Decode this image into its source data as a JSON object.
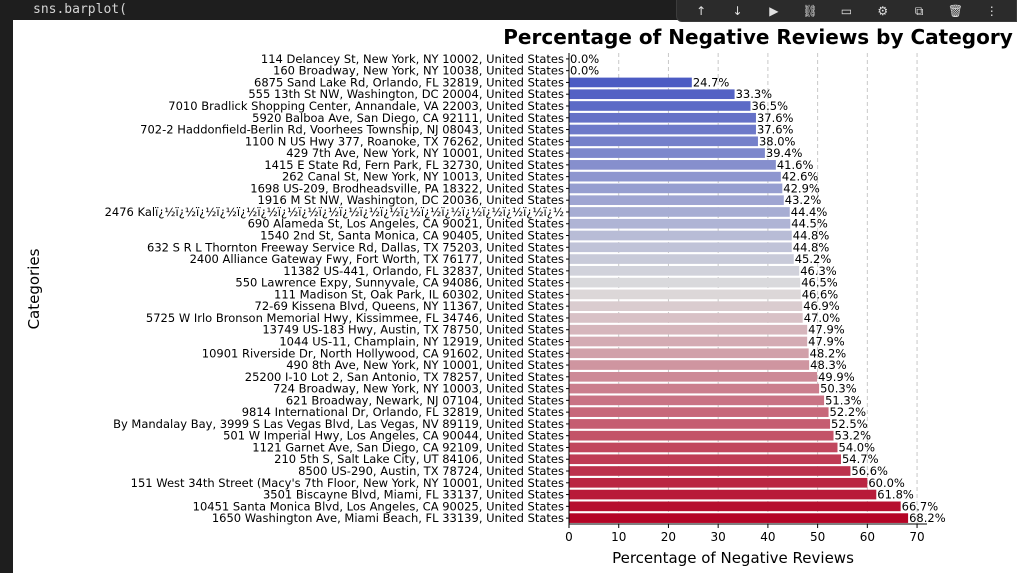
{
  "editor": {
    "code_line": "sns.barplot("
  },
  "toolbar": {
    "buttons": [
      {
        "name": "move-up-icon",
        "glyph": "↑"
      },
      {
        "name": "move-down-icon",
        "glyph": "↓"
      },
      {
        "name": "run-icon",
        "glyph": "▶"
      },
      {
        "name": "link-icon",
        "glyph": "⛓"
      },
      {
        "name": "comment-icon",
        "glyph": "▭"
      },
      {
        "name": "gear-icon",
        "glyph": "⚙"
      },
      {
        "name": "copy-icon",
        "glyph": "⧉"
      },
      {
        "name": "delete-icon",
        "glyph": "🗑"
      },
      {
        "name": "more-icon",
        "glyph": "⋮"
      }
    ]
  },
  "chart_data": {
    "type": "bar",
    "orientation": "horizontal",
    "title": "Percentage of Negative Reviews by Category",
    "xlabel": "Percentage of Negative Reviews",
    "ylabel": "Categories",
    "xlim": [
      0,
      72
    ],
    "xticks": [
      0,
      10,
      20,
      30,
      40,
      50,
      60,
      70
    ],
    "grid": "x-dashed",
    "palette": "coolwarm",
    "categories": [
      "114 Delancey St, New York, NY 10002, United States",
      "160 Broadway, New York, NY 10038, United States",
      "6875 Sand Lake Rd, Orlando, FL 32819, United States",
      "555 13th St NW, Washington, DC 20004, United States",
      "7010 Bradlick Shopping Center, Annandale, VA 22003, United States",
      "5920 Balboa Ave, San Diego, CA 92111, United States",
      "702-2 Haddonfield-Berlin Rd, Voorhees Township, NJ 08043, United States",
      "1100 N US Hwy 377, Roanoke, TX 76262, United States",
      "429 7th Ave, New York, NY 10001, United States",
      "1415 E State Rd, Fern Park, FL 32730, United States",
      "262 Canal St, New York, NY 10013, United States",
      "1698 US-209, Brodheadsville, PA 18322, United States",
      "1916 M St NW, Washington, DC 20036, United States",
      "2476 Kalï¿½ï¿½ï¿½ï¿½ï¿½ï¿½ï¿½ï¿½ï¿½ï¿½ï¿½ï¿½ï¿½ï¿½ï¿½ï¿½ï¿½ï¿½ï¿½ï¿½",
      "690 Alameda St, Los Angeles, CA 90021, United States",
      "1540 2nd St, Santa Monica, CA 90405, United States",
      "632 S R L Thornton Freeway Service Rd, Dallas, TX 75203, United States",
      "2400 Alliance Gateway Fwy, Fort Worth, TX 76177, United States",
      "11382 US-441, Orlando, FL 32837, United States",
      "550 Lawrence Expy, Sunnyvale, CA 94086, United States",
      "111 Madison St, Oak Park, IL 60302, United States",
      "72-69 Kissena Blvd, Queens, NY 11367, United States",
      "5725 W Irlo Bronson Memorial Hwy, Kissimmee, FL 34746, United States",
      "13749 US-183 Hwy, Austin, TX 78750, United States",
      "1044 US-11, Champlain, NY 12919, United States",
      "10901 Riverside Dr, North Hollywood, CA 91602, United States",
      "490 8th Ave, New York, NY 10001, United States",
      "25200 I-10 Lot 2, San Antonio, TX 78257, United States",
      "724 Broadway, New York, NY 10003, United States",
      "621 Broadway, Newark, NJ 07104, United States",
      "9814 International Dr, Orlando, FL 32819, United States",
      "By Mandalay Bay, 3999 S Las Vegas Blvd, Las Vegas, NV 89119, United States",
      "501 W Imperial Hwy, Los Angeles, CA 90044, United States",
      "1121 Garnet Ave, San Diego, CA 92109, United States",
      "210 5th S, Salt Lake City, UT 84106, United States",
      "8500 US-290, Austin, TX 78724, United States",
      "151 West 34th Street (Macy's 7th Floor, New York, NY 10001, United States",
      "3501 Biscayne Blvd, Miami, FL 33137, United States",
      "10451 Santa Monica Blvd, Los Angeles, CA 90025, United States",
      "1650 Washington Ave, Miami Beach, FL 33139, United States"
    ],
    "values": [
      0.0,
      0.0,
      24.7,
      33.3,
      36.5,
      37.6,
      37.6,
      38.0,
      39.4,
      41.6,
      42.6,
      42.9,
      43.2,
      44.4,
      44.5,
      44.8,
      44.8,
      45.2,
      46.3,
      46.5,
      46.6,
      46.9,
      47.0,
      47.9,
      47.9,
      48.2,
      48.3,
      49.9,
      50.3,
      51.3,
      52.2,
      52.5,
      53.2,
      54.0,
      54.7,
      56.6,
      60.0,
      61.8,
      66.7,
      68.2
    ],
    "value_labels": [
      "0.0%",
      "0.0%",
      "24.7%",
      "33.3%",
      "36.5%",
      "37.6%",
      "37.6%",
      "38.0%",
      "39.4%",
      "41.6%",
      "42.6%",
      "42.9%",
      "43.2%",
      "44.4%",
      "44.5%",
      "44.8%",
      "44.8%",
      "45.2%",
      "46.3%",
      "46.5%",
      "46.6%",
      "46.9%",
      "47.0%",
      "47.9%",
      "47.9%",
      "48.2%",
      "48.3%",
      "49.9%",
      "50.3%",
      "51.3%",
      "52.2%",
      "52.5%",
      "53.2%",
      "54.0%",
      "54.7%",
      "56.6%",
      "60.0%",
      "61.8%",
      "66.7%",
      "68.2%"
    ]
  }
}
